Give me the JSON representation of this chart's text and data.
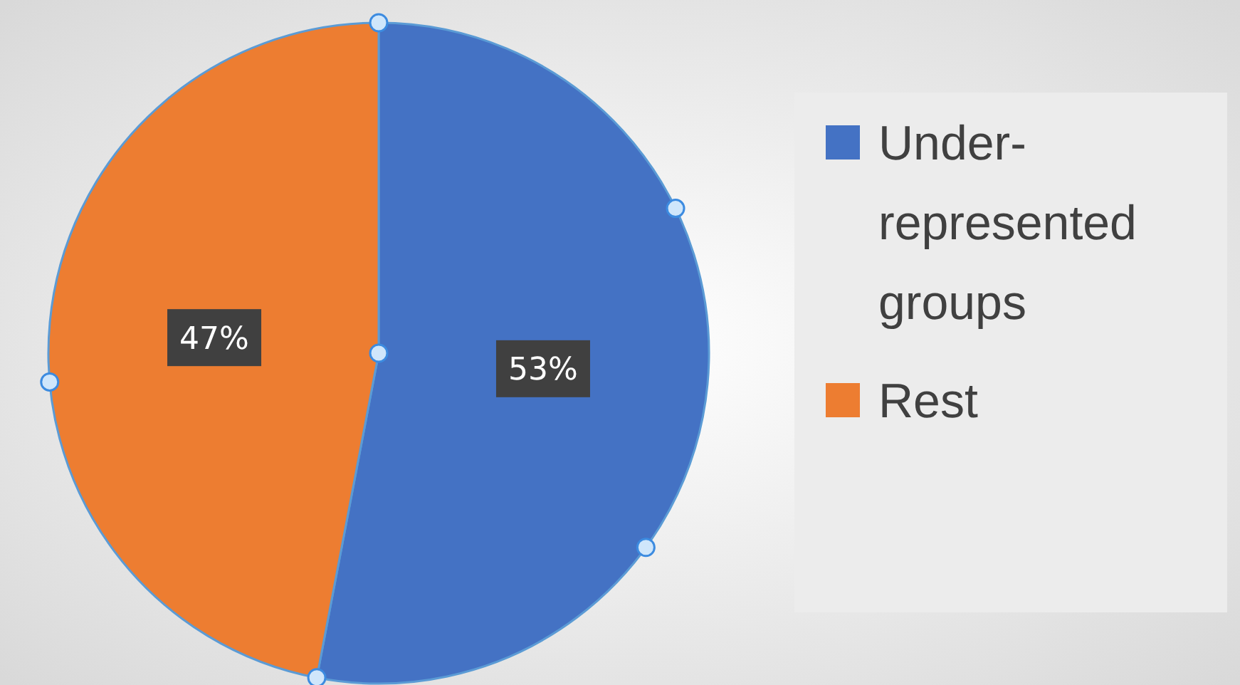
{
  "chart_data": {
    "type": "pie",
    "categories": [
      "Under-represented groups",
      "Rest"
    ],
    "values": [
      53,
      47
    ],
    "value_labels": [
      "53%",
      "47%"
    ],
    "colors": [
      "#4472c4",
      "#ed7d31"
    ],
    "legend": "right"
  }
}
